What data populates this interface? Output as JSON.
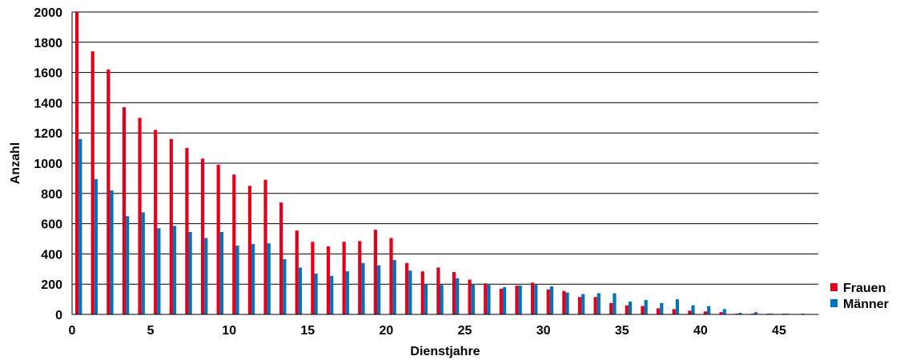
{
  "chart_data": {
    "type": "bar",
    "xlabel": "Dienstjahre",
    "ylabel": "Anzahl",
    "ylim": [
      0,
      2000
    ],
    "yticks": [
      "0",
      "200",
      "400",
      "600",
      "800",
      "1000",
      "1200",
      "1400",
      "1600",
      "1800",
      "2000"
    ],
    "xlim": [
      0,
      47.5
    ],
    "xticks": [
      "0",
      "5",
      "10",
      "15",
      "20",
      "25",
      "30",
      "35",
      "40",
      "45"
    ],
    "grid": true,
    "legend_position": "bottom-right",
    "categories": [
      0,
      1,
      2,
      3,
      4,
      5,
      6,
      7,
      8,
      9,
      10,
      11,
      12,
      13,
      14,
      15,
      16,
      17,
      18,
      19,
      20,
      21,
      22,
      23,
      24,
      25,
      26,
      27,
      28,
      29,
      30,
      31,
      32,
      33,
      34,
      35,
      36,
      37,
      38,
      39,
      40,
      41,
      42,
      43,
      44,
      45,
      46,
      47
    ],
    "series": [
      {
        "name": "Frauen",
        "color": "#e2001a",
        "values": [
          2000,
          1740,
          1620,
          1370,
          1300,
          1220,
          1160,
          1100,
          1030,
          990,
          925,
          850,
          890,
          740,
          555,
          480,
          450,
          480,
          485,
          560,
          505,
          340,
          285,
          310,
          280,
          230,
          205,
          170,
          190,
          210,
          165,
          155,
          115,
          115,
          75,
          60,
          55,
          40,
          35,
          25,
          20,
          15,
          5,
          5,
          5,
          5,
          2,
          2
        ]
      },
      {
        "name": "Männer",
        "color": "#0073bd",
        "values": [
          1160,
          895,
          820,
          650,
          675,
          570,
          585,
          545,
          505,
          545,
          455,
          465,
          470,
          365,
          310,
          270,
          255,
          285,
          340,
          325,
          360,
          290,
          200,
          195,
          240,
          200,
          195,
          180,
          190,
          195,
          185,
          145,
          135,
          140,
          140,
          85,
          95,
          75,
          100,
          60,
          55,
          35,
          10,
          15,
          5,
          5,
          5,
          2
        ]
      }
    ]
  }
}
